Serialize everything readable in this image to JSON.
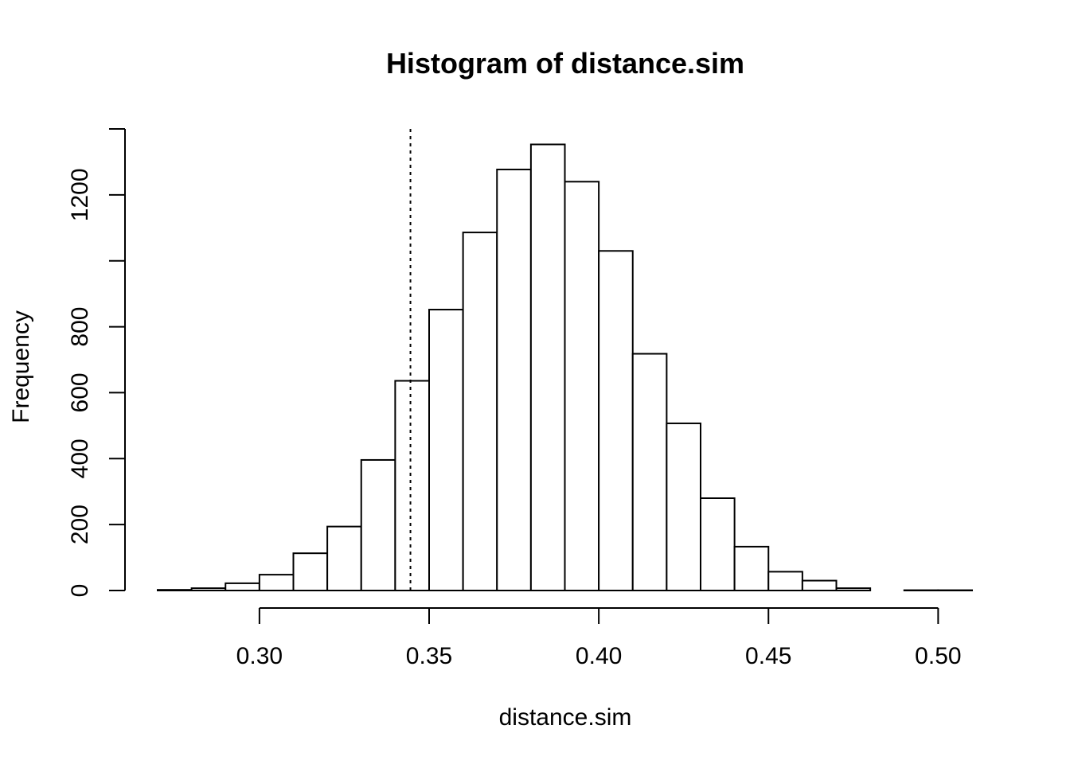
{
  "chart_data": {
    "type": "bar",
    "title": "Histogram of distance.sim",
    "xlabel": "distance.sim",
    "ylabel": "Frequency",
    "bin_width": 0.01,
    "bin_edges": [
      0.27,
      0.28,
      0.29,
      0.3,
      0.31,
      0.32,
      0.33,
      0.34,
      0.35,
      0.36,
      0.37,
      0.38,
      0.39,
      0.4,
      0.41,
      0.42,
      0.43,
      0.44,
      0.45,
      0.46,
      0.47,
      0.48,
      0.49,
      0.5,
      0.51
    ],
    "values": [
      2,
      7,
      22,
      48,
      113,
      194,
      396,
      636,
      852,
      1086,
      1277,
      1353,
      1240,
      1030,
      718,
      507,
      280,
      133,
      57,
      30,
      7,
      0,
      1,
      1
    ],
    "xlim": [
      0.27,
      0.51
    ],
    "ylim": [
      0,
      1400
    ],
    "x_ticks": [
      0.3,
      0.35,
      0.4,
      0.45,
      0.5
    ],
    "x_tick_labels": [
      "0.30",
      "0.35",
      "0.40",
      "0.45",
      "0.50"
    ],
    "y_ticks": [
      0,
      200,
      400,
      600,
      800,
      1000,
      1200,
      1400
    ],
    "y_tick_labels": [
      "0",
      "200",
      "400",
      "600",
      "800",
      "",
      "1200",
      ""
    ],
    "reference_line": {
      "x": 0.3445,
      "style": "dotted"
    },
    "grid": false,
    "legend": "none"
  }
}
